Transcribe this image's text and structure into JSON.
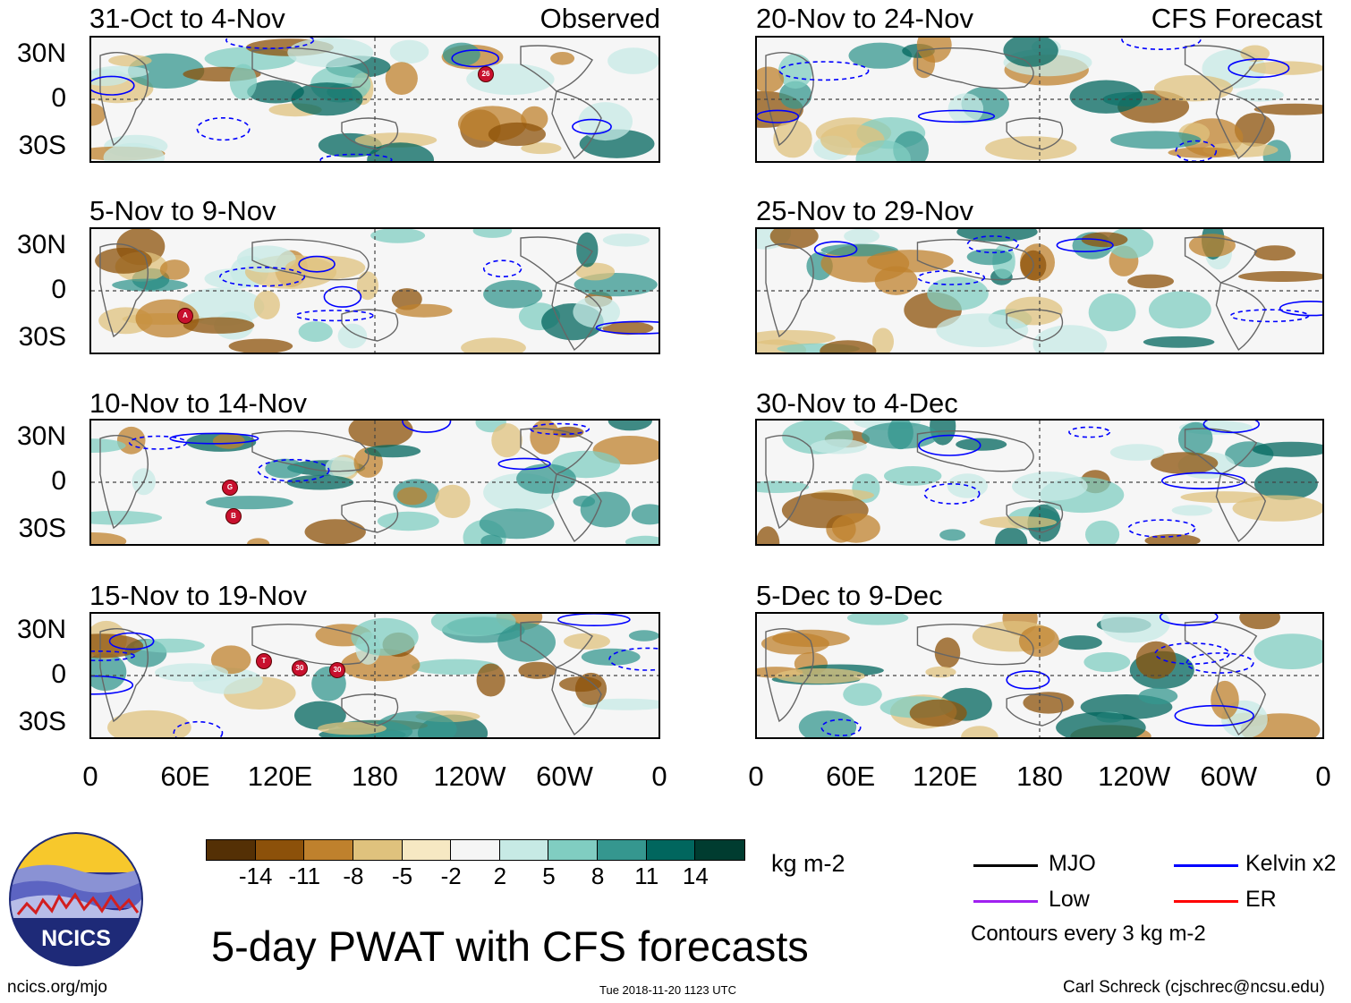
{
  "units": "kg m-2",
  "title": "5-day PWAT with CFS forecasts",
  "tags": {
    "observed": "Observed",
    "forecast": "CFS Forecast"
  },
  "latitude_labels": [
    "30N",
    "0",
    "30S"
  ],
  "longitude_labels": [
    "0",
    "60E",
    "120E",
    "180",
    "120W",
    "60W",
    "0"
  ],
  "panels_left": [
    {
      "title": "31-Oct to 4-Nov",
      "storms": [
        "26"
      ]
    },
    {
      "title": "5-Nov to 9-Nov",
      "storms": [
        "A"
      ]
    },
    {
      "title": "10-Nov to 14-Nov",
      "storms": [
        "G",
        "B"
      ]
    },
    {
      "title": "15-Nov to 19-Nov",
      "storms": [
        "T",
        "30",
        "30"
      ]
    }
  ],
  "panels_right": [
    {
      "title": "20-Nov to 24-Nov"
    },
    {
      "title": "25-Nov to 29-Nov"
    },
    {
      "title": "30-Nov to 4-Dec"
    },
    {
      "title": "5-Dec to 9-Dec"
    }
  ],
  "colorbar": {
    "labels": [
      "-14",
      "-11",
      "-8",
      "-5",
      "-2",
      "2",
      "5",
      "8",
      "11",
      "14"
    ],
    "colors": [
      "#543005",
      "#8c510a",
      "#bf812d",
      "#dfc27d",
      "#f6e8c3",
      "#f5f5f5",
      "#c7eae5",
      "#80cdc1",
      "#35978f",
      "#01665e",
      "#003c30"
    ]
  },
  "legend": {
    "items": [
      {
        "label": "MJO",
        "color": "#000000"
      },
      {
        "label": "Kelvin x2",
        "color": "#0000ff"
      },
      {
        "label": "Low",
        "color": "#a020f0"
      },
      {
        "label": "ER",
        "color": "#ff0000"
      }
    ],
    "note": "Contours every 3 kg m-2"
  },
  "logo": {
    "text": "NCICS"
  },
  "footer": {
    "url": "ncics.org/mjo",
    "timestamp": "Tue 2018-11-20 1123 UTC",
    "credit": "Carl Schreck (cjschrec@ncsu.edu)"
  }
}
